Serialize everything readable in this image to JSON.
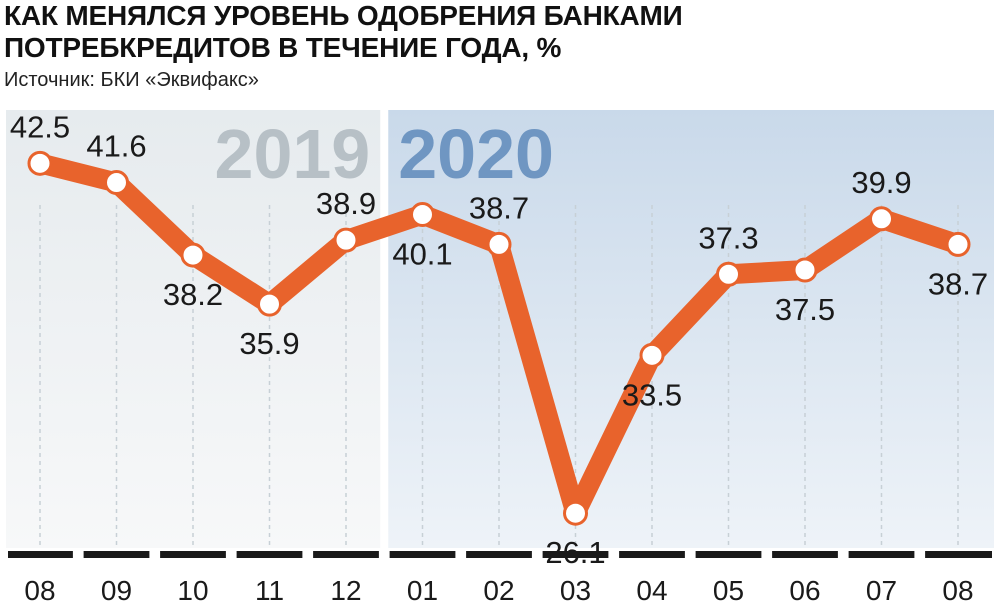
{
  "header": {
    "title": "КАК МЕНЯЛСЯ УРОВЕНЬ ОДОБРЕНИЯ БАНКАМИ\nПОТРЕБКРЕДИТОВ В ТЕЧЕНИЕ ГОДА, %",
    "source": "Источник: БКИ «Эквифакс»"
  },
  "colors": {
    "line": "#e8632c",
    "marker_fill": "#ffffff",
    "band_2019": "#e6ebee",
    "band_2020": "#c9d9ea",
    "year_2019_text": "#b7c0c6",
    "year_2020_text": "#6f96c2",
    "baseline": "#1a1a1a",
    "gridline": "#c7d0d6"
  },
  "chart_data": {
    "type": "line",
    "categories": [
      "08",
      "09",
      "10",
      "11",
      "12",
      "01",
      "02",
      "03",
      "04",
      "05",
      "06",
      "07",
      "08"
    ],
    "values": [
      42.5,
      41.6,
      38.2,
      35.9,
      38.9,
      40.1,
      38.7,
      26.1,
      33.5,
      37.3,
      37.5,
      39.9,
      38.7
    ],
    "periods": [
      {
        "label": "2019",
        "from": 0,
        "to": 4
      },
      {
        "label": "2020",
        "from": 5,
        "to": 12
      }
    ],
    "ylim": [
      24,
      45
    ],
    "grid": "vertical dotted",
    "legend": "none",
    "xlabel": "",
    "ylabel": ""
  }
}
